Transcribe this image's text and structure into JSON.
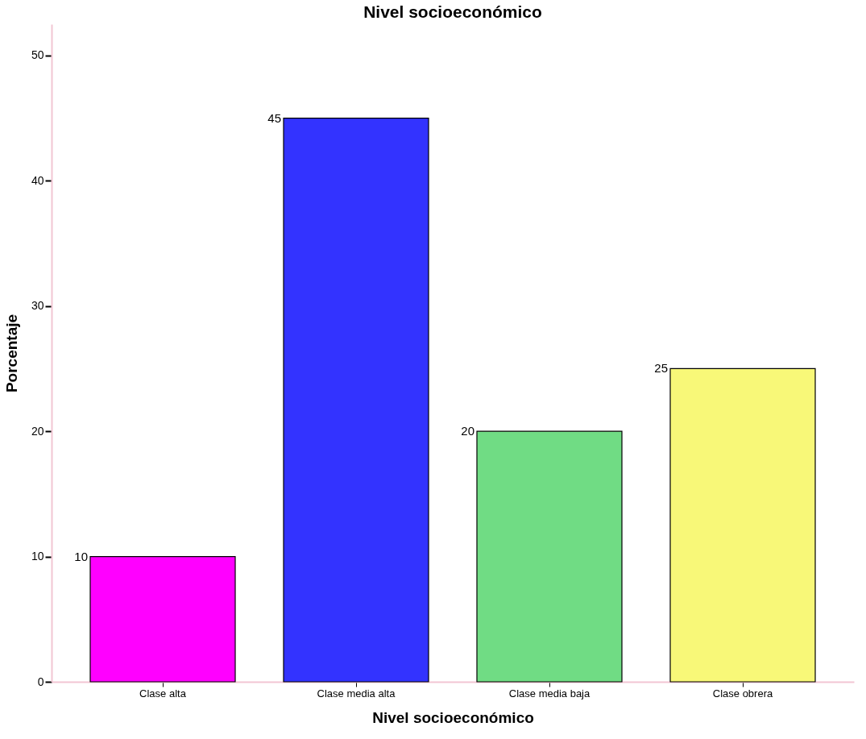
{
  "chart_data": {
    "type": "bar",
    "title": "Nivel socioeconómico",
    "xlabel": "Nivel socioeconómico",
    "ylabel": "Porcentaje",
    "categories": [
      "Clase alta",
      "Clase media alta",
      "Clase media baja",
      "Clase obrera"
    ],
    "values": [
      10,
      45,
      20,
      25
    ],
    "colors": [
      "#ff00ff",
      "#3333ff",
      "#70dc84",
      "#f8f878"
    ],
    "ylim": [
      0,
      52.5
    ],
    "yticks": [
      0,
      10,
      20,
      30,
      40,
      50
    ],
    "data_labels": true,
    "grid": false
  }
}
